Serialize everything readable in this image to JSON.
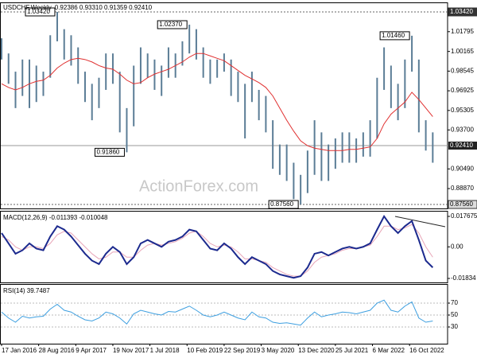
{
  "chart_data": [
    {
      "type": "hlbar",
      "title": "USDCHF,Weekly",
      "quote": "0.92386 0.93310 0.91359 0.92410",
      "color": "#5b7d96",
      "x": [
        0,
        6,
        12,
        18,
        24,
        30,
        36,
        42,
        48,
        54,
        60,
        66,
        72,
        78,
        84,
        90,
        96,
        102,
        108,
        114,
        120,
        126,
        132,
        138,
        144,
        150,
        156,
        162,
        168,
        174,
        180,
        186,
        192,
        198,
        204,
        210,
        216,
        222,
        228,
        234,
        240,
        246,
        252,
        258,
        264,
        270,
        276,
        282,
        288,
        294,
        300,
        306,
        312,
        318,
        324,
        330,
        336,
        342,
        348,
        354,
        360,
        366,
        372
      ],
      "high": [
        1.0125,
        1.0,
        0.985,
        0.995,
        0.995,
        0.99,
        0.985,
        1.015,
        1.0342,
        1.02,
        1.015,
        1.005,
        0.985,
        0.975,
        0.98,
        1.0,
        1.0,
        0.985,
        0.955,
        0.99,
        1.005,
        1.0,
        0.995,
        0.99,
        1.005,
        1.0,
        1.01,
        1.0237,
        1.02,
        1.005,
        0.995,
        0.995,
        1.0,
        0.995,
        0.985,
        0.975,
        0.985,
        0.97,
        0.965,
        0.945,
        0.925,
        0.925,
        0.91,
        0.9,
        0.92,
        0.945,
        0.935,
        0.925,
        0.93,
        0.935,
        0.935,
        0.93,
        0.935,
        0.945,
        0.98,
        1.005,
        0.99,
        0.975,
        0.995,
        1.0146,
        0.995,
        0.945,
        0.935
      ],
      "low": [
        0.995,
        0.975,
        0.955,
        0.965,
        0.955,
        0.96,
        0.965,
        0.98,
        1.01,
        0.995,
        0.99,
        0.975,
        0.96,
        0.945,
        0.955,
        0.97,
        0.975,
        0.935,
        0.9186,
        0.94,
        0.975,
        0.98,
        0.97,
        0.965,
        0.98,
        0.98,
        0.99,
        1.0,
        0.995,
        0.98,
        0.975,
        0.98,
        0.985,
        0.965,
        0.96,
        0.93,
        0.96,
        0.945,
        0.935,
        0.905,
        0.9,
        0.895,
        0.88,
        0.8756,
        0.885,
        0.9,
        0.895,
        0.895,
        0.905,
        0.91,
        0.91,
        0.91,
        0.915,
        0.915,
        0.93,
        0.97,
        0.955,
        0.945,
        0.955,
        0.985,
        0.935,
        0.92,
        0.91
      ],
      "overlay": {
        "color": "#e03030",
        "values": [
          0.975,
          0.972,
          0.97,
          0.972,
          0.975,
          0.977,
          0.978,
          0.982,
          0.988,
          0.992,
          0.995,
          0.996,
          0.995,
          0.993,
          0.99,
          0.988,
          0.987,
          0.983,
          0.978,
          0.975,
          0.976,
          0.98,
          0.983,
          0.985,
          0.987,
          0.99,
          0.993,
          0.997,
          1.0,
          1.0,
          0.998,
          0.996,
          0.994,
          0.99,
          0.986,
          0.982,
          0.979,
          0.976,
          0.972,
          0.965,
          0.955,
          0.945,
          0.936,
          0.928,
          0.924,
          0.922,
          0.921,
          0.92,
          0.92,
          0.92,
          0.921,
          0.921,
          0.922,
          0.923,
          0.93,
          0.942,
          0.95,
          0.955,
          0.96,
          0.968,
          0.962,
          0.955,
          0.948
        ]
      },
      "xlim": [
        0,
        380
      ],
      "ylim": [
        0.87234,
        1.04206
      ],
      "yticks": [
        1.01795,
        1.00165,
        0.98545,
        0.96925,
        0.95305,
        {
          "value": 0.937,
          "label": "0.93700"
        },
        {
          "value": 0.9049,
          "label": "0.90490"
        },
        {
          "value": 0.8887,
          "label": "0.88870"
        }
      ],
      "last": {
        "value": 0.9241,
        "label": "0.92410"
      },
      "hlines": [
        {
          "value": 1.0342,
          "label": "1.03420"
        },
        {
          "value": 0.8756,
          "label": "0.87560"
        }
      ],
      "annotations": [
        {
          "x": 48,
          "value": 1.0342,
          "label": "1.03420"
        },
        {
          "x": 162,
          "value": 1.0237,
          "label": "1.02370"
        },
        {
          "x": 108,
          "value": 0.9186,
          "label": "0.91860"
        },
        {
          "x": 258,
          "value": 0.8756,
          "label": "0.87560"
        },
        {
          "x": 354,
          "value": 1.0146,
          "label": "1.01460"
        }
      ],
      "watermark": "ActionForex.com"
    },
    {
      "type": "line",
      "title": "MACD(12,26,9) -0.011393 -0.010048",
      "x": [
        0,
        6,
        12,
        18,
        24,
        30,
        36,
        42,
        48,
        54,
        60,
        66,
        72,
        78,
        84,
        90,
        96,
        102,
        108,
        114,
        120,
        126,
        132,
        138,
        144,
        150,
        156,
        162,
        168,
        174,
        180,
        186,
        192,
        198,
        204,
        210,
        216,
        222,
        228,
        234,
        240,
        246,
        252,
        258,
        264,
        270,
        276,
        282,
        288,
        294,
        300,
        306,
        312,
        318,
        324,
        330,
        336,
        342,
        348,
        354,
        360,
        366,
        372
      ],
      "series": [
        {
          "color": "#e8a6b8",
          "width": 1,
          "values": [
            0.006,
            0.004,
            0.0,
            -0.002,
            0.0,
            0.0,
            -0.001,
            0.002,
            0.007,
            0.009,
            0.008,
            0.004,
            0.0,
            -0.004,
            -0.007,
            -0.006,
            -0.003,
            -0.003,
            -0.006,
            -0.006,
            -0.002,
            0.001,
            0.002,
            0.001,
            0.002,
            0.003,
            0.005,
            0.008,
            0.009,
            0.006,
            0.002,
            0.0,
            0.001,
            0.0,
            -0.003,
            -0.007,
            -0.007,
            -0.008,
            -0.009,
            -0.012,
            -0.014,
            -0.016,
            -0.017,
            -0.017,
            -0.014,
            -0.009,
            -0.006,
            -0.005,
            -0.004,
            -0.002,
            -0.001,
            -0.001,
            0.0,
            0.001,
            0.006,
            0.012,
            0.012,
            0.01,
            0.011,
            0.013,
            0.008,
            0.0,
            -0.006
          ]
        },
        {
          "color": "#1c2a8e",
          "width": 2,
          "values": [
            0.008,
            0.002,
            -0.004,
            -0.002,
            0.002,
            -0.001,
            -0.002,
            0.006,
            0.012,
            0.01,
            0.006,
            0.001,
            -0.004,
            -0.008,
            -0.01,
            -0.004,
            0.0,
            -0.003,
            -0.01,
            -0.006,
            0.002,
            0.004,
            0.002,
            0.0,
            0.003,
            0.004,
            0.006,
            0.01,
            0.009,
            0.004,
            -0.001,
            -0.002,
            0.002,
            -0.001,
            -0.006,
            -0.01,
            -0.006,
            -0.008,
            -0.01,
            -0.014,
            -0.016,
            -0.017,
            -0.018,
            -0.017,
            -0.012,
            -0.004,
            -0.003,
            -0.005,
            -0.003,
            -0.001,
            0.0,
            -0.001,
            0.0,
            0.002,
            0.01,
            0.0177,
            0.012,
            0.008,
            0.012,
            0.015,
            0.004,
            -0.008,
            -0.012
          ]
        }
      ],
      "xlim": [
        0,
        380
      ],
      "ylim": [
        -0.02065,
        0.02091
      ],
      "yticks": [
        0.017675,
        {
          "value": 0,
          "label": "0.00"
        },
        -0.01834
      ]
    },
    {
      "type": "line",
      "title": "RSI(14) 39.7487",
      "x": [
        0,
        6,
        12,
        18,
        24,
        30,
        36,
        42,
        48,
        54,
        60,
        66,
        72,
        78,
        84,
        90,
        96,
        102,
        108,
        114,
        120,
        126,
        132,
        138,
        144,
        150,
        156,
        162,
        168,
        174,
        180,
        186,
        192,
        198,
        204,
        210,
        216,
        222,
        228,
        234,
        240,
        246,
        252,
        258,
        264,
        270,
        276,
        282,
        288,
        294,
        300,
        306,
        312,
        318,
        324,
        330,
        336,
        342,
        348,
        354,
        360,
        366,
        372
      ],
      "series": [
        {
          "color": "#3d9fe0",
          "width": 1,
          "values": [
            55,
            45,
            38,
            48,
            45,
            47,
            48,
            60,
            68,
            58,
            55,
            48,
            42,
            40,
            45,
            55,
            52,
            45,
            35,
            52,
            58,
            55,
            52,
            50,
            56,
            55,
            60,
            65,
            58,
            50,
            47,
            50,
            55,
            50,
            45,
            42,
            55,
            47,
            45,
            38,
            36,
            37,
            35,
            33,
            45,
            55,
            47,
            50,
            52,
            55,
            54,
            52,
            55,
            58,
            70,
            75,
            58,
            55,
            65,
            72,
            45,
            38,
            40
          ]
        }
      ],
      "xlim": [
        0,
        380
      ],
      "ylim": [
        2,
        102
      ],
      "yticks": [
        70,
        50,
        30
      ],
      "grid": true,
      "xticks": [
        {
          "value": 0,
          "label": "17 Jan 2016"
        },
        {
          "value": 32,
          "label": "28 Aug 2016"
        },
        {
          "value": 64,
          "label": "9 Apr 2017"
        },
        {
          "value": 96,
          "label": "19 Nov 2017"
        },
        {
          "value": 128,
          "label": "1 Jul 2018"
        },
        {
          "value": 160,
          "label": "10 Feb 2019"
        },
        {
          "value": 192,
          "label": "22 Sep 2019"
        },
        {
          "value": 224,
          "label": "3 May 2020"
        },
        {
          "value": 256,
          "label": "13 Dec 2020"
        },
        {
          "value": 288,
          "label": "25 Jul 2021"
        },
        {
          "value": 320,
          "label": "6 Mar 2022"
        },
        {
          "value": 352,
          "label": "16 Oct 2022"
        }
      ]
    }
  ]
}
